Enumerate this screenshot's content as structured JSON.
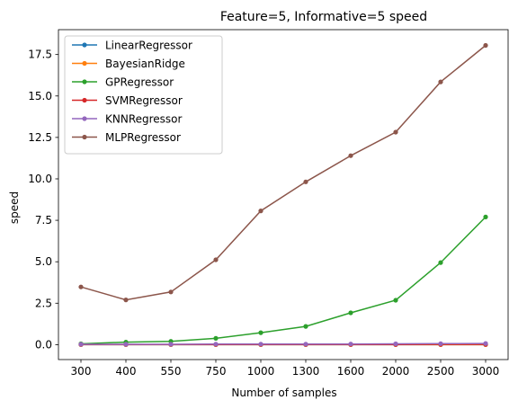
{
  "chart_data": {
    "type": "line",
    "title": "Feature=5, Informative=5 speed",
    "xlabel": "Number of samples",
    "ylabel": "speed",
    "categories": [
      "300",
      "400",
      "550",
      "750",
      "1000",
      "1300",
      "1600",
      "2000",
      "2500",
      "3000"
    ],
    "ylim": [
      -0.9,
      19.0
    ],
    "yticks": [
      "0.0",
      "2.5",
      "5.0",
      "7.5",
      "10.0",
      "12.5",
      "15.0",
      "17.5"
    ],
    "grid": false,
    "legend_position": "top-left",
    "series": [
      {
        "name": "LinearRegressor",
        "color": "#1f77b4",
        "values": [
          0.0,
          0.0,
          0.0,
          0.0,
          0.0,
          0.0,
          0.0,
          0.0,
          0.0,
          0.0
        ]
      },
      {
        "name": "BayesianRidge",
        "color": "#ff7f0e",
        "values": [
          0.0,
          0.0,
          0.0,
          0.0,
          0.0,
          0.0,
          0.0,
          0.0,
          0.0,
          0.0
        ]
      },
      {
        "name": "GPRegressor",
        "color": "#2ca02c",
        "values": [
          0.05,
          0.15,
          0.2,
          0.38,
          0.72,
          1.1,
          1.92,
          2.68,
          4.95,
          7.7
        ]
      },
      {
        "name": "SVMRegressor",
        "color": "#d62728",
        "values": [
          0.01,
          0.01,
          0.01,
          0.01,
          0.01,
          0.01,
          0.01,
          0.01,
          0.02,
          0.02
        ]
      },
      {
        "name": "KNNRegressor",
        "color": "#9467bd",
        "values": [
          0.02,
          0.02,
          0.02,
          0.03,
          0.03,
          0.03,
          0.04,
          0.05,
          0.06,
          0.07
        ]
      },
      {
        "name": "MLPRegressor",
        "color": "#8c564b",
        "values": [
          3.48,
          2.7,
          3.18,
          5.12,
          8.07,
          9.82,
          11.4,
          12.82,
          15.85,
          18.05
        ]
      }
    ]
  }
}
